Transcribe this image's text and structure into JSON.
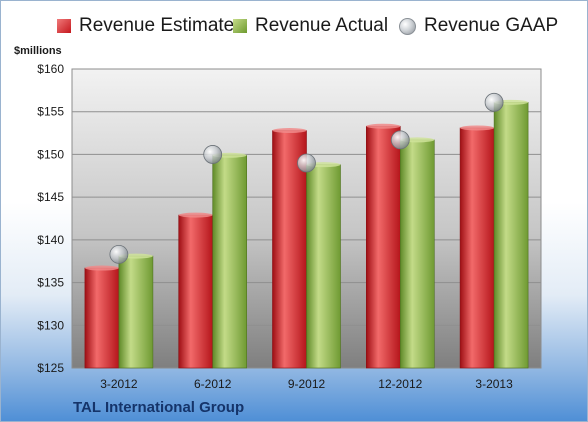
{
  "chart_data": {
    "type": "bar",
    "ylabel": "$millions",
    "ylim": [
      125,
      160
    ],
    "yticks": [
      "$125",
      "$130",
      "$135",
      "$140",
      "$145",
      "$150",
      "$155",
      "$160"
    ],
    "categories": [
      "3-2012",
      "6-2012",
      "9-2012",
      "12-2012",
      "3-2013"
    ],
    "series": [
      {
        "name": "Revenue Estimate",
        "kind": "bar",
        "color": "#c4161c",
        "values": [
          136.7,
          142.9,
          152.8,
          153.3,
          153.1
        ]
      },
      {
        "name": "Revenue Actual",
        "kind": "bar",
        "color": "#7fa63a",
        "values": [
          138.1,
          149.9,
          148.8,
          151.7,
          156.1
        ]
      },
      {
        "name": "Revenue GAAP",
        "kind": "marker",
        "color": "#b8bdc2",
        "values": [
          138.3,
          150.0,
          149.0,
          151.7,
          156.1
        ]
      }
    ],
    "legend": "top",
    "grid": true
  },
  "company": "TAL International Group"
}
